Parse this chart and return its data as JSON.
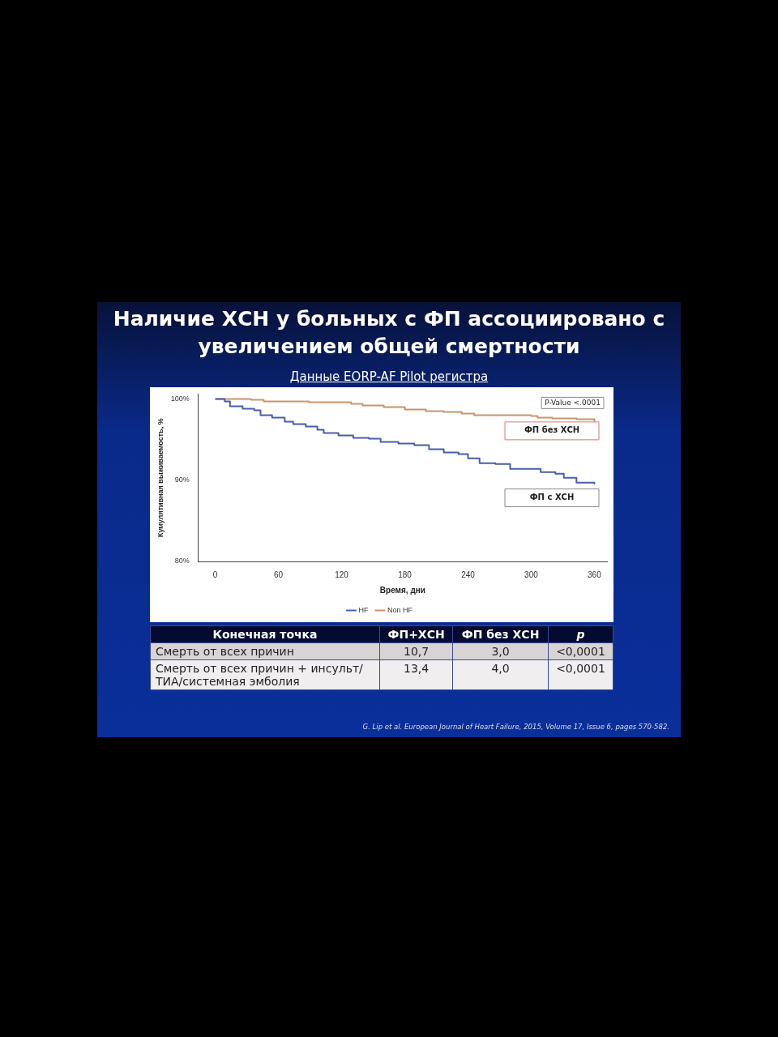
{
  "chart_data": [
    {
      "type": "step",
      "title": "Наличие ХСН у больных с ФП ассоциировано с увеличением общей смертности",
      "subtitle": "Данные EORP-AF Pilot регистра",
      "xlabel": "Время, дни",
      "ylabel": "Кумулятивная выживаемость, %",
      "xlim": [
        -16,
        372
      ],
      "xticks": [
        0,
        60,
        120,
        180,
        240,
        300,
        360
      ],
      "ylim": [
        80,
        100.6
      ],
      "yticks": [
        {
          "value": 80,
          "label": "80%"
        },
        {
          "value": 90,
          "label": "90%"
        },
        {
          "value": 100,
          "label": "100%"
        }
      ],
      "legend": "bottom",
      "grid": false,
      "marker": "none",
      "annotations": [
        "P-Value <.0001",
        "ФП без ХСН",
        "ФП с ХСН"
      ],
      "series": [
        {
          "name": "HF",
          "color": "#4a5ea8",
          "x": [
            0,
            9,
            14,
            26,
            37,
            43,
            54,
            66,
            74,
            86,
            97,
            103,
            117,
            131,
            146,
            157,
            174,
            189,
            203,
            217,
            231,
            240,
            251,
            266,
            280,
            297,
            309,
            323,
            331,
            343,
            360
          ],
          "values": [
            100,
            99.7,
            99.1,
            98.8,
            98.6,
            98.0,
            97.7,
            97.2,
            96.9,
            96.6,
            96.2,
            95.8,
            95.5,
            95.2,
            95.1,
            94.7,
            94.5,
            94.3,
            93.8,
            93.4,
            93.2,
            92.7,
            92.1,
            92.0,
            91.4,
            91.4,
            91.0,
            90.8,
            90.3,
            89.7,
            89.5
          ]
        },
        {
          "name": "Non HF",
          "color": "#c8956a",
          "x": [
            0,
            34,
            46,
            89,
            129,
            140,
            160,
            180,
            200,
            217,
            234,
            246,
            274,
            300,
            306,
            320,
            343,
            360
          ],
          "values": [
            100,
            99.9,
            99.7,
            99.6,
            99.4,
            99.2,
            99.0,
            98.7,
            98.5,
            98.4,
            98.2,
            98.0,
            98.0,
            97.9,
            97.7,
            97.6,
            97.5,
            97.2
          ]
        }
      ]
    },
    {
      "type": "other",
      "annotations": [
        "Конечная точка",
        "ФП+ХСН",
        "ФП без ХСН",
        "p",
        "Смерть от всех причин",
        "10,7",
        "3,0",
        "<0,0001",
        "Смерть от всех причин + инсульт/ТИА/системная эмболия",
        "13,4",
        "4,0",
        "<0,0001",
        "G. Lip et al. European Journal of Heart Failure, 2015, Volume 17, Issue 6, pages 570-582."
      ]
    }
  ]
}
